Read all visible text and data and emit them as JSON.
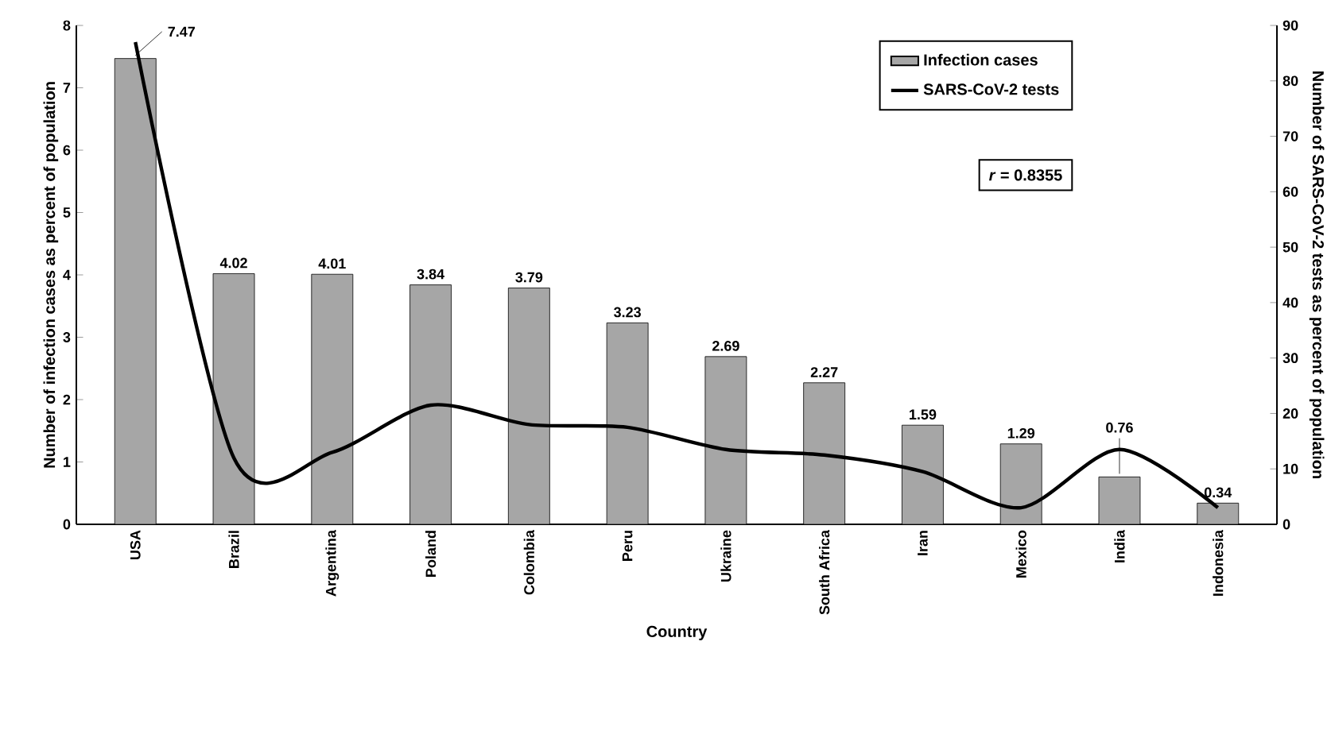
{
  "chart_data": {
    "type": "bar",
    "xlabel": "Country",
    "ylabel": "Number of infection cases as percent of population",
    "y2label": "Number of SARS-CoV-2 tests as percent of population",
    "categories": [
      "USA",
      "Brazil",
      "Argentina",
      "Poland",
      "Colombia",
      "Peru",
      "Ukraine",
      "South Africa",
      "Iran",
      "Mexico",
      "India",
      "Indonesia"
    ],
    "series": [
      {
        "name": "Infection cases",
        "color": "#a6a6a6",
        "values": [
          7.47,
          4.02,
          4.01,
          3.84,
          3.79,
          3.23,
          2.69,
          2.27,
          1.59,
          1.29,
          0.76,
          0.34
        ],
        "value_labels": [
          "7.47",
          "4.02",
          "4.01",
          "3.84",
          "3.79",
          "3.23",
          "2.69",
          "2.27",
          "1.59",
          "1.29",
          "0.76",
          "0.34"
        ]
      },
      {
        "name": "SARS-CoV-2 tests",
        "type": "line",
        "axis": "y2",
        "color": "#000000",
        "values": [
          87,
          12,
          13,
          21.5,
          18,
          17.5,
          13.5,
          12.5,
          9.5,
          3,
          13.5,
          3
        ]
      }
    ],
    "ylim": [
      0,
      8
    ],
    "yticks": [
      0,
      1,
      2,
      3,
      4,
      5,
      6,
      7,
      8
    ],
    "y2lim": [
      0,
      90
    ],
    "y2ticks": [
      0,
      10,
      20,
      30,
      40,
      50,
      60,
      70,
      80,
      90
    ],
    "legend": "top right",
    "grid": false,
    "annotations": [
      "*r* = 0.8355"
    ]
  }
}
